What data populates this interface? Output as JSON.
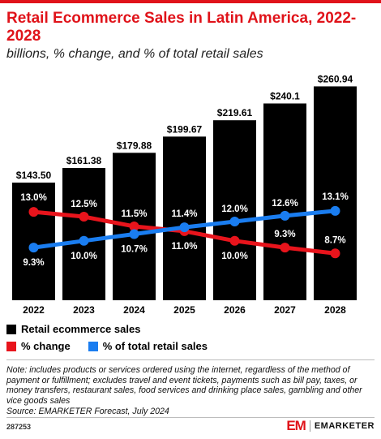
{
  "title": "Retail Ecommerce Sales in Latin America, 2022-2028",
  "subtitle": "billions, % change, and % of total retail sales",
  "legend": {
    "sales": "Retail ecommerce sales",
    "change": "% change",
    "share": "% of total retail sales"
  },
  "note": "Note: includes products or services ordered using the internet, regardless of the method of payment or fulfillment; excludes travel and event tickets, payments such as bill pay, taxes, or money transfers, restaurant sales, food services and drinking place sales, gambling and other vice goods sales",
  "source": "Source: EMARKETER Forecast, July 2024",
  "chart_id": "287253",
  "brand": {
    "logo": "EM",
    "name": "EMARKETER"
  },
  "colors": {
    "accent": "#e0131a",
    "bar": "#000000",
    "change_line": "#e8141c",
    "share_line": "#1a7df0"
  },
  "chart_data": {
    "type": "bar",
    "categories": [
      "2022",
      "2023",
      "2024",
      "2025",
      "2026",
      "2027",
      "2028"
    ],
    "values": [
      143.5,
      161.38,
      179.88,
      199.67,
      219.61,
      240.1,
      260.94
    ],
    "value_labels": [
      "$143.50",
      "$161.38",
      "$179.88",
      "$199.67",
      "$219.61",
      "$240.1",
      "$260.94"
    ],
    "series": [
      {
        "name": "Retail ecommerce sales",
        "type": "bar",
        "values": [
          143.5,
          161.38,
          179.88,
          199.67,
          219.61,
          240.1,
          260.94
        ]
      },
      {
        "name": "% change",
        "type": "line",
        "values": [
          13.0,
          12.5,
          11.5,
          11.0,
          10.0,
          9.3,
          8.7
        ],
        "labels": [
          "13.0%",
          "12.5%",
          "11.5%",
          "11.0%",
          "10.0%",
          "9.3%",
          "8.7%"
        ]
      },
      {
        "name": "% of total retail sales",
        "type": "line",
        "values": [
          9.3,
          10.0,
          10.7,
          11.4,
          12.0,
          12.6,
          13.1
        ],
        "labels": [
          "9.3%",
          "10.0%",
          "10.7%",
          "11.4%",
          "12.0%",
          "12.6%",
          "13.1%"
        ]
      }
    ],
    "grid": false,
    "legend_position": "bottom-left"
  }
}
